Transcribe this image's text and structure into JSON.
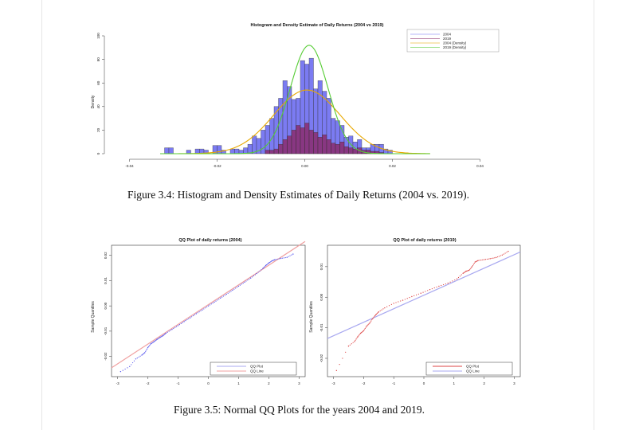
{
  "page": {
    "figure1_caption": "Figure 3.4: Histogram and Density Estimates of Daily Returns (2004 vs. 2019).",
    "figure2_caption": "Figure 3.5: Normal QQ Plots for the years 2004 and 2019."
  },
  "colors": {
    "hist2004": "#7b7bf2",
    "hist2019": "#8b2b6e",
    "density2004": "#e8a800",
    "density2019": "#55cc33",
    "qq2004_points": "#5555ee",
    "qq2004_line": "#f0a0a0",
    "qq2019_points": "#dd4444",
    "qq2019_line": "#a8a8f0"
  },
  "chart_data": [
    {
      "type": "bar",
      "title": "Histogram and Density Estimate of Daily Returns (2004 vs 2019)",
      "xlabel": "",
      "ylabel": "Density",
      "xlim": [
        -0.045,
        0.045
      ],
      "ylim": [
        0,
        100
      ],
      "x_ticks": [
        "-0.04",
        "-0.02",
        "0.00",
        "0.02",
        "0.04"
      ],
      "x_tick_values": [
        -0.04,
        -0.02,
        0.0,
        0.02,
        0.04
      ],
      "y_ticks": [
        "0",
        "20",
        "40",
        "60",
        "80",
        "100"
      ],
      "y_tick_values": [
        0,
        20,
        40,
        60,
        80,
        100
      ],
      "legend": [
        "2004",
        "2019",
        "2004 (Density)",
        "2019 (Density)"
      ],
      "legend_position": "top-right",
      "bin_width": 0.001,
      "series": [
        {
          "name": "2004",
          "bin_starts": [
            -0.032,
            -0.031,
            -0.027,
            -0.025,
            -0.024,
            -0.023,
            -0.021,
            -0.02,
            -0.019,
            -0.017,
            -0.016,
            -0.015,
            -0.014,
            -0.013,
            -0.012,
            -0.011,
            -0.01,
            -0.009,
            -0.008,
            -0.007,
            -0.006,
            -0.005,
            -0.004,
            -0.003,
            -0.002,
            -0.001,
            0.0,
            0.001,
            0.002,
            0.003,
            0.004,
            0.005,
            0.006,
            0.007,
            0.008,
            0.009,
            0.01,
            0.011,
            0.012,
            0.013,
            0.014,
            0.015,
            0.016,
            0.017,
            0.018,
            0.019
          ],
          "values": [
            5,
            5,
            3,
            4,
            4,
            3,
            7,
            7,
            3,
            4,
            4,
            3,
            5,
            8,
            15,
            13,
            20,
            24,
            30,
            40,
            47,
            62,
            57,
            46,
            47,
            79,
            76,
            81,
            55,
            62,
            53,
            47,
            30,
            28,
            24,
            14,
            15,
            10,
            12,
            5,
            5,
            8,
            8,
            8,
            4,
            3
          ]
        },
        {
          "name": "2019",
          "bin_starts": [
            -0.009,
            -0.008,
            -0.007,
            -0.006,
            -0.005,
            -0.004,
            -0.003,
            -0.002,
            -0.001,
            0.0,
            0.001,
            0.002,
            0.003,
            0.004,
            0.005,
            0.006,
            0.007,
            0.008,
            0.009,
            0.01,
            0.011,
            0.012,
            0.013,
            0.014,
            0.015,
            0.016,
            0.017
          ],
          "values": [
            3,
            3,
            4,
            8,
            12,
            15,
            20,
            24,
            22,
            26,
            20,
            18,
            14,
            16,
            12,
            9,
            8,
            10,
            6,
            5,
            4,
            5,
            3,
            3,
            2,
            2,
            1
          ]
        }
      ],
      "density_curves": [
        {
          "name": "2004 (Density)",
          "mean": 0.0005,
          "sd": 0.0076,
          "peak": 54
        },
        {
          "name": "2019 (Density)",
          "mean": 0.001,
          "sd": 0.0043,
          "peak": 92
        }
      ]
    },
    {
      "type": "scatter",
      "title": "QQ Plot of daily returns (2004)",
      "xlabel": "",
      "ylabel": "Sample Quantiles",
      "xlim": [
        -3.2,
        3.2
      ],
      "ylim": [
        -0.028,
        0.024
      ],
      "x_ticks": [
        "-3",
        "-2",
        "-1",
        "0",
        "1",
        "2",
        "3"
      ],
      "x_tick_values": [
        -3,
        -2,
        -1,
        0,
        1,
        2,
        3
      ],
      "y_ticks": [
        "-0.02",
        "-0.01",
        "0.00",
        "0.01",
        "0.02"
      ],
      "y_tick_values": [
        -0.02,
        -0.01,
        0.0,
        0.01,
        0.02
      ],
      "legend": [
        "QQ Plot",
        "QQ Line"
      ],
      "legend_position": "bottom-right",
      "series": [
        {
          "name": "QQ Plot",
          "x": [
            -2.9,
            -2.6,
            -2.4,
            -2.2,
            -2.1,
            -2.0,
            -1.9,
            -1.8,
            -1.7,
            -1.6,
            -1.5,
            -1.4,
            -1.2,
            -1.0,
            -0.8,
            -0.6,
            -0.4,
            -0.2,
            0.0,
            0.2,
            0.4,
            0.6,
            0.8,
            1.0,
            1.2,
            1.4,
            1.6,
            1.8,
            1.9,
            2.0,
            2.1,
            2.2,
            2.4,
            2.6,
            2.8
          ],
          "y": [
            -0.026,
            -0.024,
            -0.021,
            -0.0195,
            -0.0185,
            -0.0165,
            -0.015,
            -0.0142,
            -0.0133,
            -0.0125,
            -0.0118,
            -0.0108,
            -0.0093,
            -0.0078,
            -0.0062,
            -0.0047,
            -0.0031,
            -0.0016,
            0.0,
            0.0015,
            0.0031,
            0.0046,
            0.0062,
            0.0078,
            0.0094,
            0.011,
            0.0128,
            0.0148,
            0.016,
            0.017,
            0.0178,
            0.0183,
            0.0188,
            0.0192,
            0.0205
          ]
        },
        {
          "name": "QQ Line",
          "x": [
            -3.2,
            3.2
          ],
          "y": [
            -0.0245,
            0.0255
          ]
        }
      ]
    },
    {
      "type": "scatter",
      "title": "QQ Plot of daily returns (2019)",
      "xlabel": "",
      "ylabel": "Sample Quantiles",
      "xlim": [
        -3.2,
        3.2
      ],
      "ylim": [
        -0.026,
        0.017
      ],
      "x_ticks": [
        "-3",
        "-2",
        "-1",
        "0",
        "1",
        "2",
        "3"
      ],
      "x_tick_values": [
        -3,
        -2,
        -1,
        0,
        1,
        2,
        3
      ],
      "y_ticks": [
        "-0.02",
        "-0.01",
        "0.00",
        "0.01"
      ],
      "y_tick_values": [
        -0.02,
        -0.01,
        0.0,
        0.01
      ],
      "legend": [
        "QQ Plot",
        "QQ Line"
      ],
      "legend_position": "bottom-right",
      "series": [
        {
          "name": "QQ Plot",
          "x": [
            -2.9,
            -2.5,
            -2.3,
            -2.2,
            -2.1,
            -2.0,
            -1.9,
            -1.8,
            -1.7,
            -1.6,
            -1.5,
            -1.3,
            -1.0,
            -0.7,
            -0.4,
            -0.1,
            0.2,
            0.5,
            0.8,
            1.1,
            1.3,
            1.4,
            1.5,
            1.6,
            1.7,
            1.8,
            2.0,
            2.2,
            2.4,
            2.6,
            2.8
          ],
          "y": [
            -0.024,
            -0.016,
            -0.0145,
            -0.013,
            -0.0118,
            -0.011,
            -0.0095,
            -0.0085,
            -0.007,
            -0.0058,
            -0.0048,
            -0.0035,
            -0.002,
            -0.001,
            0.0002,
            0.0013,
            0.0025,
            0.0036,
            0.0046,
            0.006,
            0.0078,
            0.0085,
            0.0088,
            0.01,
            0.0115,
            0.012,
            0.0123,
            0.0126,
            0.013,
            0.0138,
            0.015
          ]
        },
        {
          "name": "QQ Line",
          "x": [
            -3.2,
            3.2
          ],
          "y": [
            -0.0135,
            0.0148
          ]
        }
      ]
    }
  ]
}
